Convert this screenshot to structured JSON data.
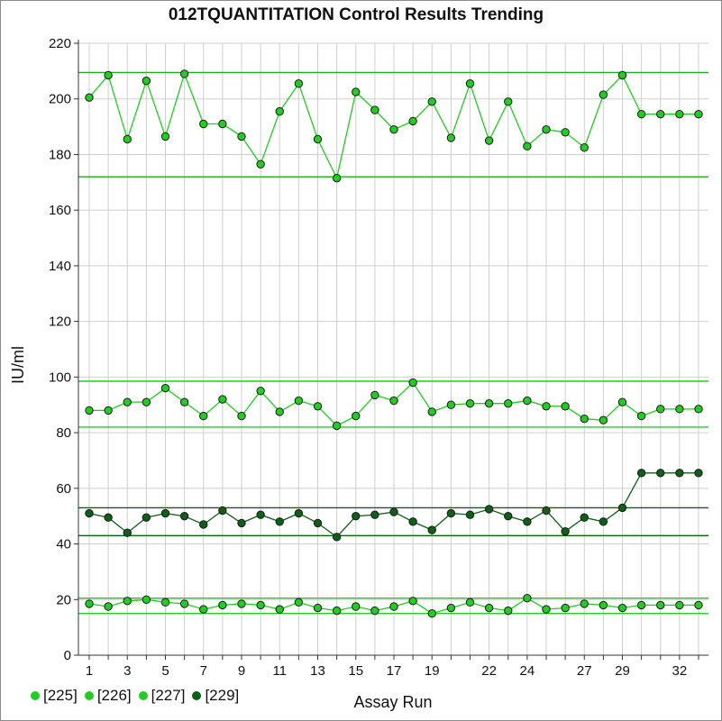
{
  "chart_data": {
    "type": "line",
    "title": "012TQUANTITATION Control Results Trending",
    "xlabel": "Assay Run",
    "ylabel": "IU/ml",
    "ylim": [
      0,
      220
    ],
    "yticks": [
      0,
      20,
      40,
      60,
      80,
      100,
      120,
      140,
      160,
      180,
      200,
      220
    ],
    "xlim": [
      1,
      33
    ],
    "xticks": [
      1,
      3,
      5,
      7,
      9,
      11,
      13,
      15,
      17,
      19,
      22,
      24,
      27,
      29,
      32
    ],
    "x": [
      1,
      2,
      3,
      4,
      5,
      6,
      7,
      8,
      9,
      10,
      11,
      12,
      13,
      14,
      15,
      16,
      17,
      18,
      19,
      20,
      21,
      22,
      23,
      24,
      25,
      26,
      27,
      28,
      29,
      30,
      31,
      32,
      33
    ],
    "grid": true,
    "legend_position": "bottom-left",
    "series": [
      {
        "name": "[225]",
        "color": "#22cc22",
        "values": [
          88,
          88,
          91,
          91,
          96,
          91,
          86,
          92,
          86,
          95,
          87.5,
          91.5,
          89.5,
          82.5,
          86,
          93.5,
          91.5,
          98,
          87.5,
          90,
          90.5,
          90.5,
          90.5,
          91.5,
          89.5,
          89.5,
          85,
          84.5,
          91,
          86,
          88.5,
          88.5,
          88.5
        ]
      },
      {
        "name": "[226]",
        "color": "#22cc22",
        "values": [
          18.5,
          17.5,
          19.5,
          20,
          19,
          18.5,
          16.5,
          18,
          18.5,
          18,
          16.5,
          19,
          17,
          16,
          17.5,
          16,
          17.5,
          19.5,
          15,
          17,
          19,
          17,
          16,
          20.5,
          16.5,
          17,
          18.5,
          18,
          17,
          18,
          18,
          18,
          18
        ]
      },
      {
        "name": "[227]",
        "color": "#22cc22",
        "values": [
          200.5,
          208.5,
          185.5,
          206.5,
          186.5,
          209,
          191,
          191,
          186.5,
          176.5,
          195.5,
          205.5,
          185.5,
          171.5,
          202.5,
          196,
          189,
          192,
          199,
          186,
          205.5,
          185,
          199,
          183,
          189,
          188,
          182.5,
          201.5,
          208.5,
          194.5,
          194.5,
          194.5,
          194.5
        ]
      },
      {
        "name": "[229]",
        "color": "#0e5f17",
        "values": [
          51,
          49.5,
          44,
          49.5,
          51,
          50,
          47,
          52,
          47.5,
          50.5,
          48,
          51,
          47.5,
          42.5,
          50,
          50.5,
          51.5,
          48,
          45,
          51,
          50.5,
          52.5,
          50,
          48,
          52,
          44.5,
          49.5,
          48,
          53,
          65.5,
          65.5,
          65.5,
          65.5
        ]
      }
    ],
    "control_limits": [
      {
        "value": 209.5,
        "color": "#22aa22"
      },
      {
        "value": 172,
        "color": "#22aa22"
      },
      {
        "value": 98.5,
        "color": "#22cc22"
      },
      {
        "value": 82,
        "color": "#22cc22"
      },
      {
        "value": 53,
        "color": "#0e5f17"
      },
      {
        "value": 43,
        "color": "#0e5f17"
      },
      {
        "value": 20.5,
        "color": "#22cc22"
      },
      {
        "value": 15,
        "color": "#22cc22"
      }
    ]
  },
  "legend": {
    "items": [
      {
        "label": "[225]",
        "color": "#22cc22"
      },
      {
        "label": "[226]",
        "color": "#22cc22"
      },
      {
        "label": "[227]",
        "color": "#22cc22"
      },
      {
        "label": "[229]",
        "color": "#0e5f17"
      }
    ]
  }
}
